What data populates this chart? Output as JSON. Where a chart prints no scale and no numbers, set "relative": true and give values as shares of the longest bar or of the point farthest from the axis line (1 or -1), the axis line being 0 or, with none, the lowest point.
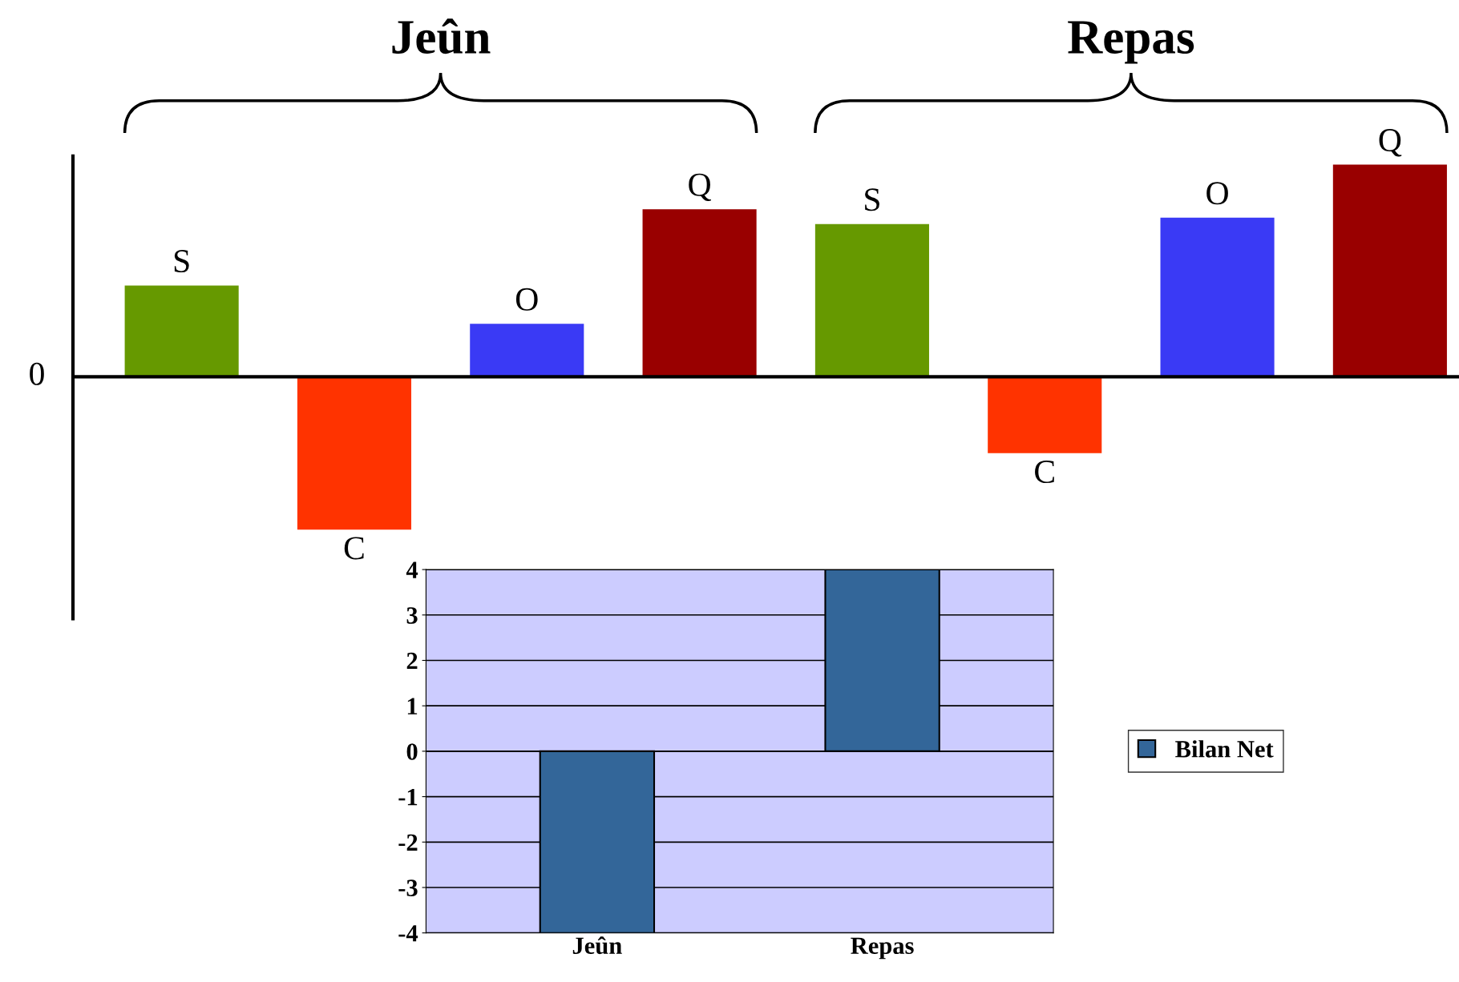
{
  "chart_data": [
    {
      "type": "bar",
      "relative": true,
      "categories": [
        "S",
        "C",
        "O",
        "Q",
        "S",
        "C",
        "O",
        "Q"
      ],
      "values": [
        0.43,
        -0.72,
        0.25,
        0.79,
        0.72,
        -0.36,
        0.75,
        1.0
      ],
      "colors": [
        "#669900",
        "#ff3300",
        "#3a3af5",
        "#990000",
        "#669900",
        "#ff3300",
        "#3a3af5",
        "#990000"
      ],
      "annotations": [
        "Jeûn",
        "Repas",
        "0"
      ]
    },
    {
      "type": "bar",
      "categories": [
        "Jeûn",
        "Repas"
      ],
      "series": [
        {
          "name": "Bilan Net",
          "color": "#336699",
          "values": [
            -4,
            4
          ]
        }
      ],
      "ylim": [
        -4,
        4
      ],
      "yticks": [
        -4,
        -3,
        -2,
        -1,
        0,
        1,
        2,
        3,
        4
      ],
      "grid": "y",
      "legend": "right"
    }
  ]
}
